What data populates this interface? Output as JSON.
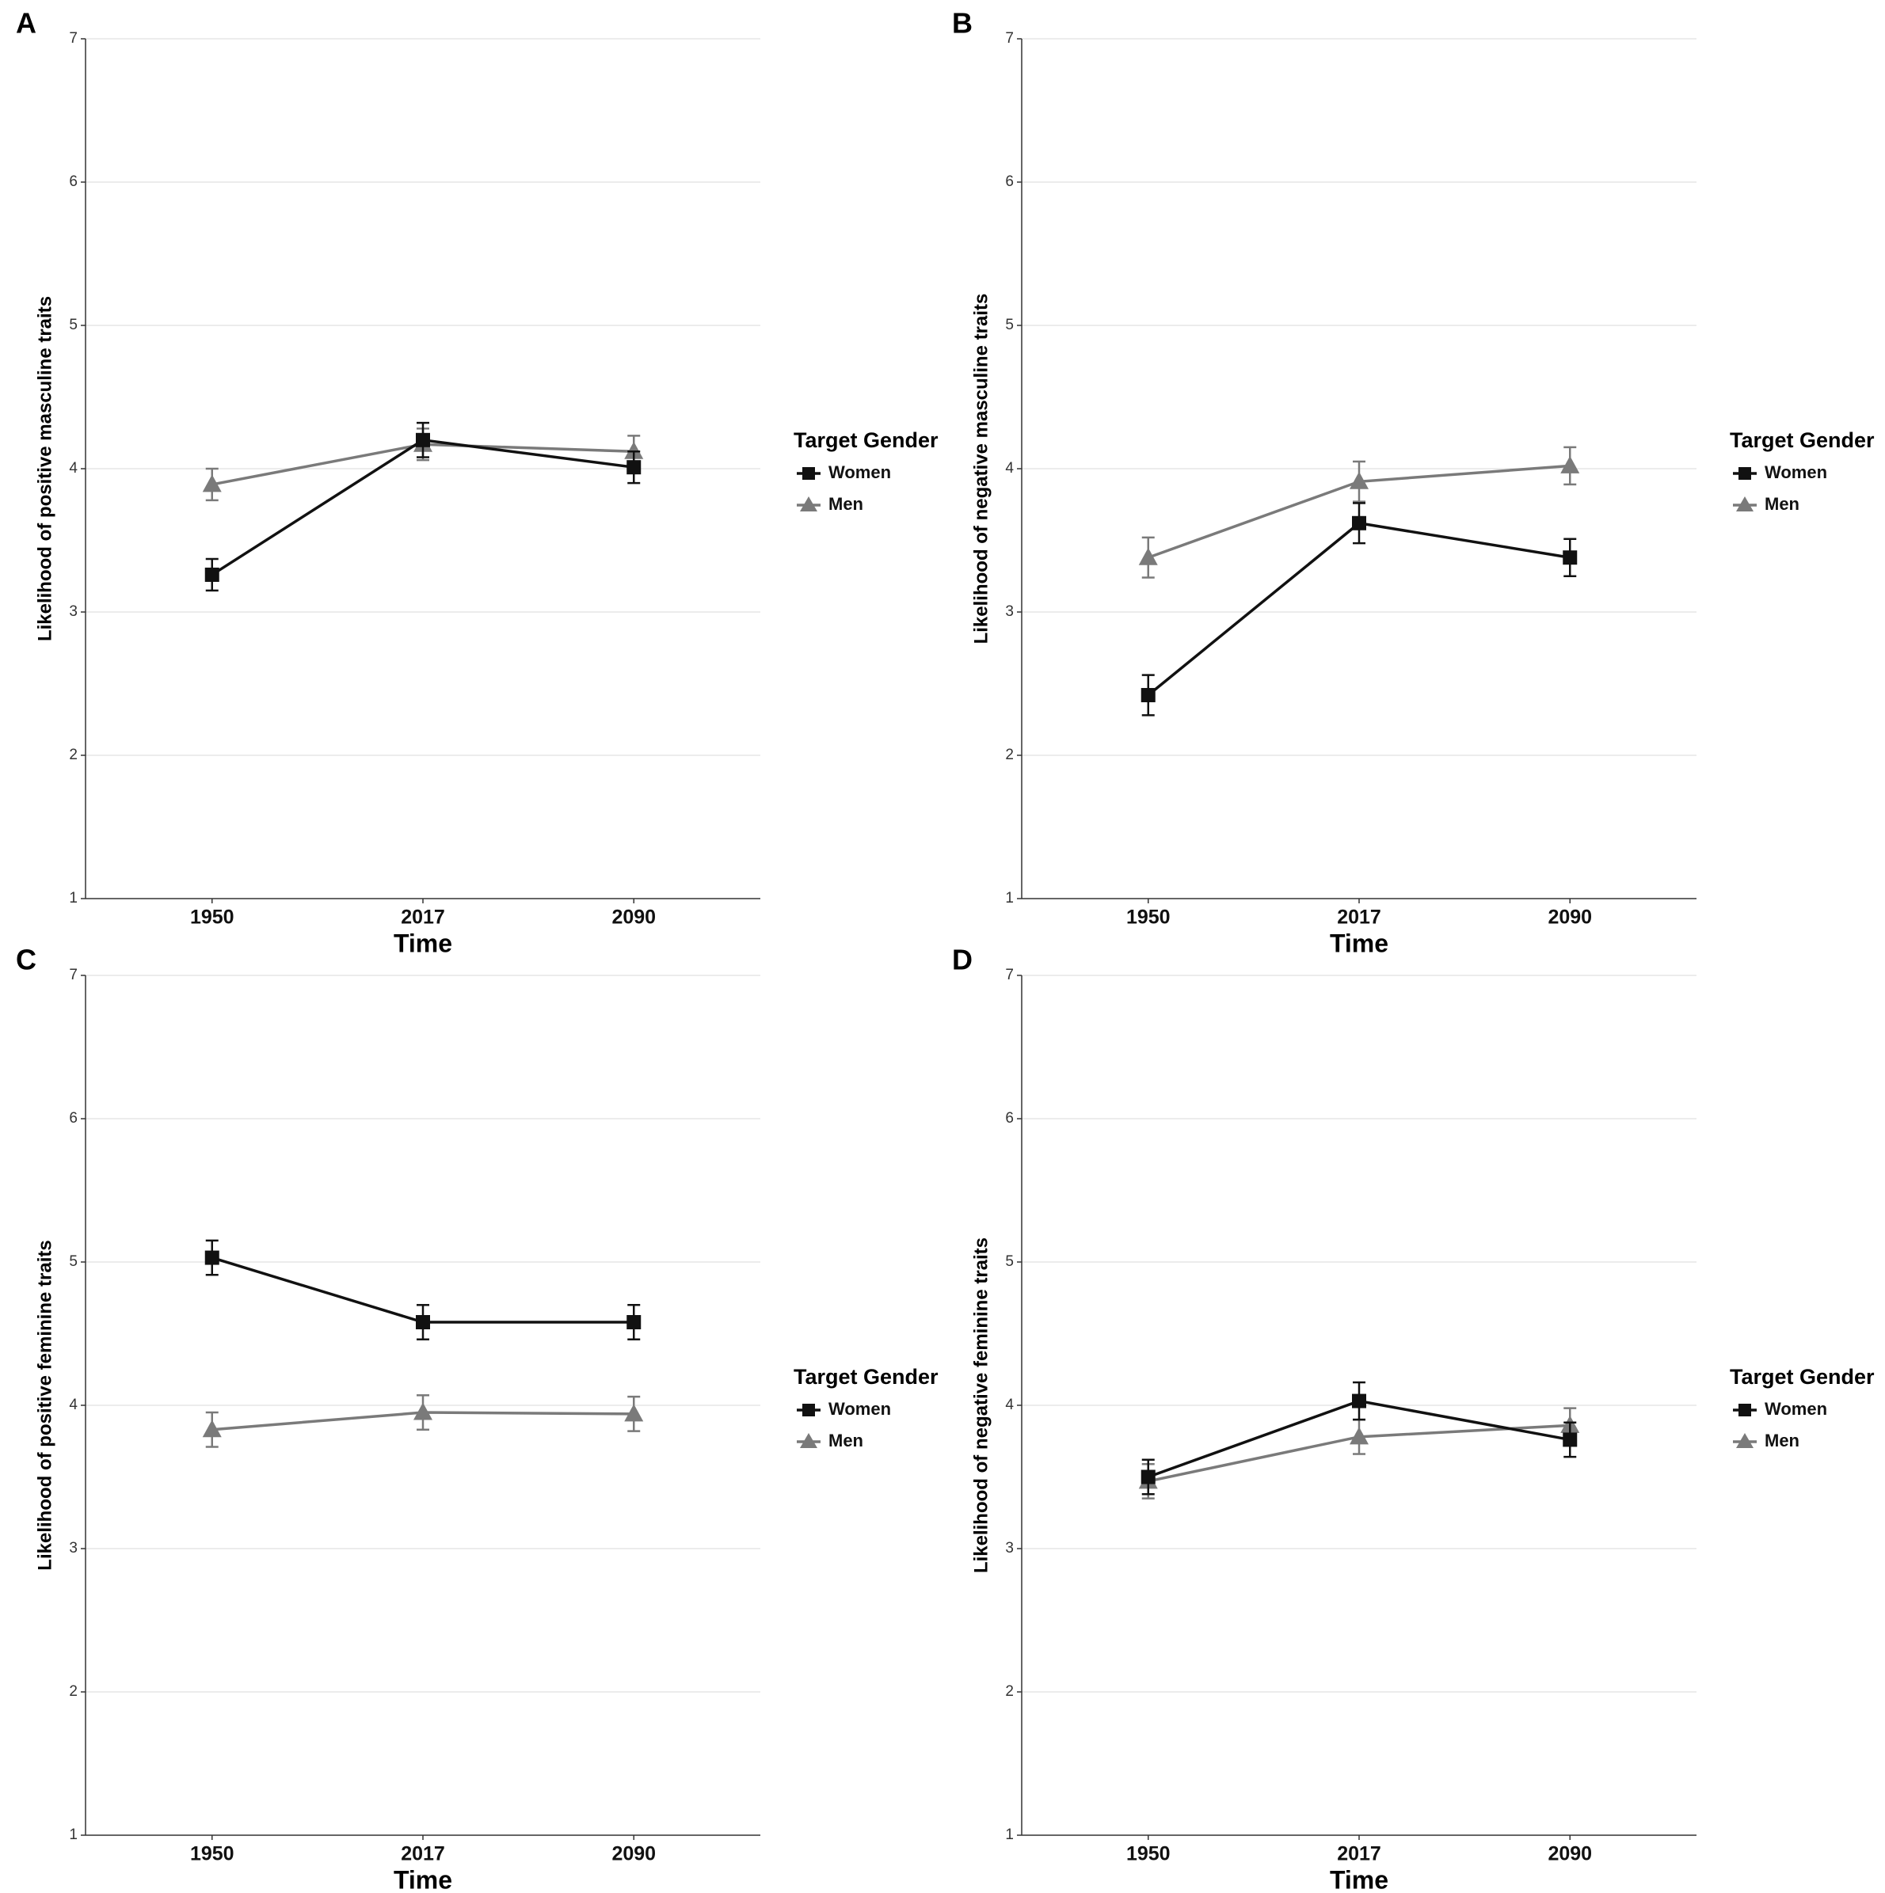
{
  "colors": {
    "women": "#111111",
    "men": "#7a7a7a",
    "grid": "#e6e6e6",
    "axis": "#333333"
  },
  "chart_data": [
    {
      "panel": "A",
      "type": "line",
      "ylabel": "Likelihood of positive masculine traits",
      "xlabel": "Time",
      "categories": [
        "1950",
        "2017",
        "2090"
      ],
      "ylim": [
        1,
        7
      ],
      "yticks": [
        "1",
        "2",
        "3",
        "4",
        "5",
        "6",
        "7"
      ],
      "legend_title": "Target Gender",
      "legend_position": "right",
      "series": [
        {
          "name": "Women",
          "marker": "square",
          "values": [
            3.26,
            4.2,
            4.01
          ],
          "error": [
            0.11,
            0.12,
            0.11
          ]
        },
        {
          "name": "Men",
          "marker": "triangle",
          "values": [
            3.89,
            4.17,
            4.12
          ],
          "error": [
            0.11,
            0.11,
            0.11
          ]
        }
      ]
    },
    {
      "panel": "B",
      "type": "line",
      "ylabel": "Likelihood of negative masculine traits",
      "xlabel": "Time",
      "categories": [
        "1950",
        "2017",
        "2090"
      ],
      "ylim": [
        1,
        7
      ],
      "yticks": [
        "1",
        "2",
        "3",
        "4",
        "5",
        "6",
        "7"
      ],
      "legend_title": "Target Gender",
      "legend_position": "right",
      "series": [
        {
          "name": "Women",
          "marker": "square",
          "values": [
            2.42,
            3.62,
            3.38
          ],
          "error": [
            0.14,
            0.14,
            0.13
          ]
        },
        {
          "name": "Men",
          "marker": "triangle",
          "values": [
            3.38,
            3.91,
            4.02
          ],
          "error": [
            0.14,
            0.14,
            0.13
          ]
        }
      ]
    },
    {
      "panel": "C",
      "type": "line",
      "ylabel": "Likelihood of positive feminine traits",
      "xlabel": "Time",
      "categories": [
        "1950",
        "2017",
        "2090"
      ],
      "ylim": [
        1,
        7
      ],
      "yticks": [
        "1",
        "2",
        "3",
        "4",
        "5",
        "6",
        "7"
      ],
      "legend_title": "Target Gender",
      "legend_position": "right",
      "series": [
        {
          "name": "Women",
          "marker": "square",
          "values": [
            5.03,
            4.58,
            4.58
          ],
          "error": [
            0.12,
            0.12,
            0.12
          ]
        },
        {
          "name": "Men",
          "marker": "triangle",
          "values": [
            3.83,
            3.95,
            3.94
          ],
          "error": [
            0.12,
            0.12,
            0.12
          ]
        }
      ]
    },
    {
      "panel": "D",
      "type": "line",
      "ylabel": "Likelihood of negative feminine traits",
      "xlabel": "Time",
      "categories": [
        "1950",
        "2017",
        "2090"
      ],
      "ylim": [
        1,
        7
      ],
      "yticks": [
        "1",
        "2",
        "3",
        "4",
        "5",
        "6",
        "7"
      ],
      "legend_title": "Target Gender",
      "legend_position": "right",
      "series": [
        {
          "name": "Women",
          "marker": "square",
          "values": [
            3.5,
            4.03,
            3.76
          ],
          "error": [
            0.12,
            0.13,
            0.12
          ]
        },
        {
          "name": "Men",
          "marker": "triangle",
          "values": [
            3.47,
            3.78,
            3.86
          ],
          "error": [
            0.12,
            0.12,
            0.12
          ]
        }
      ]
    }
  ]
}
